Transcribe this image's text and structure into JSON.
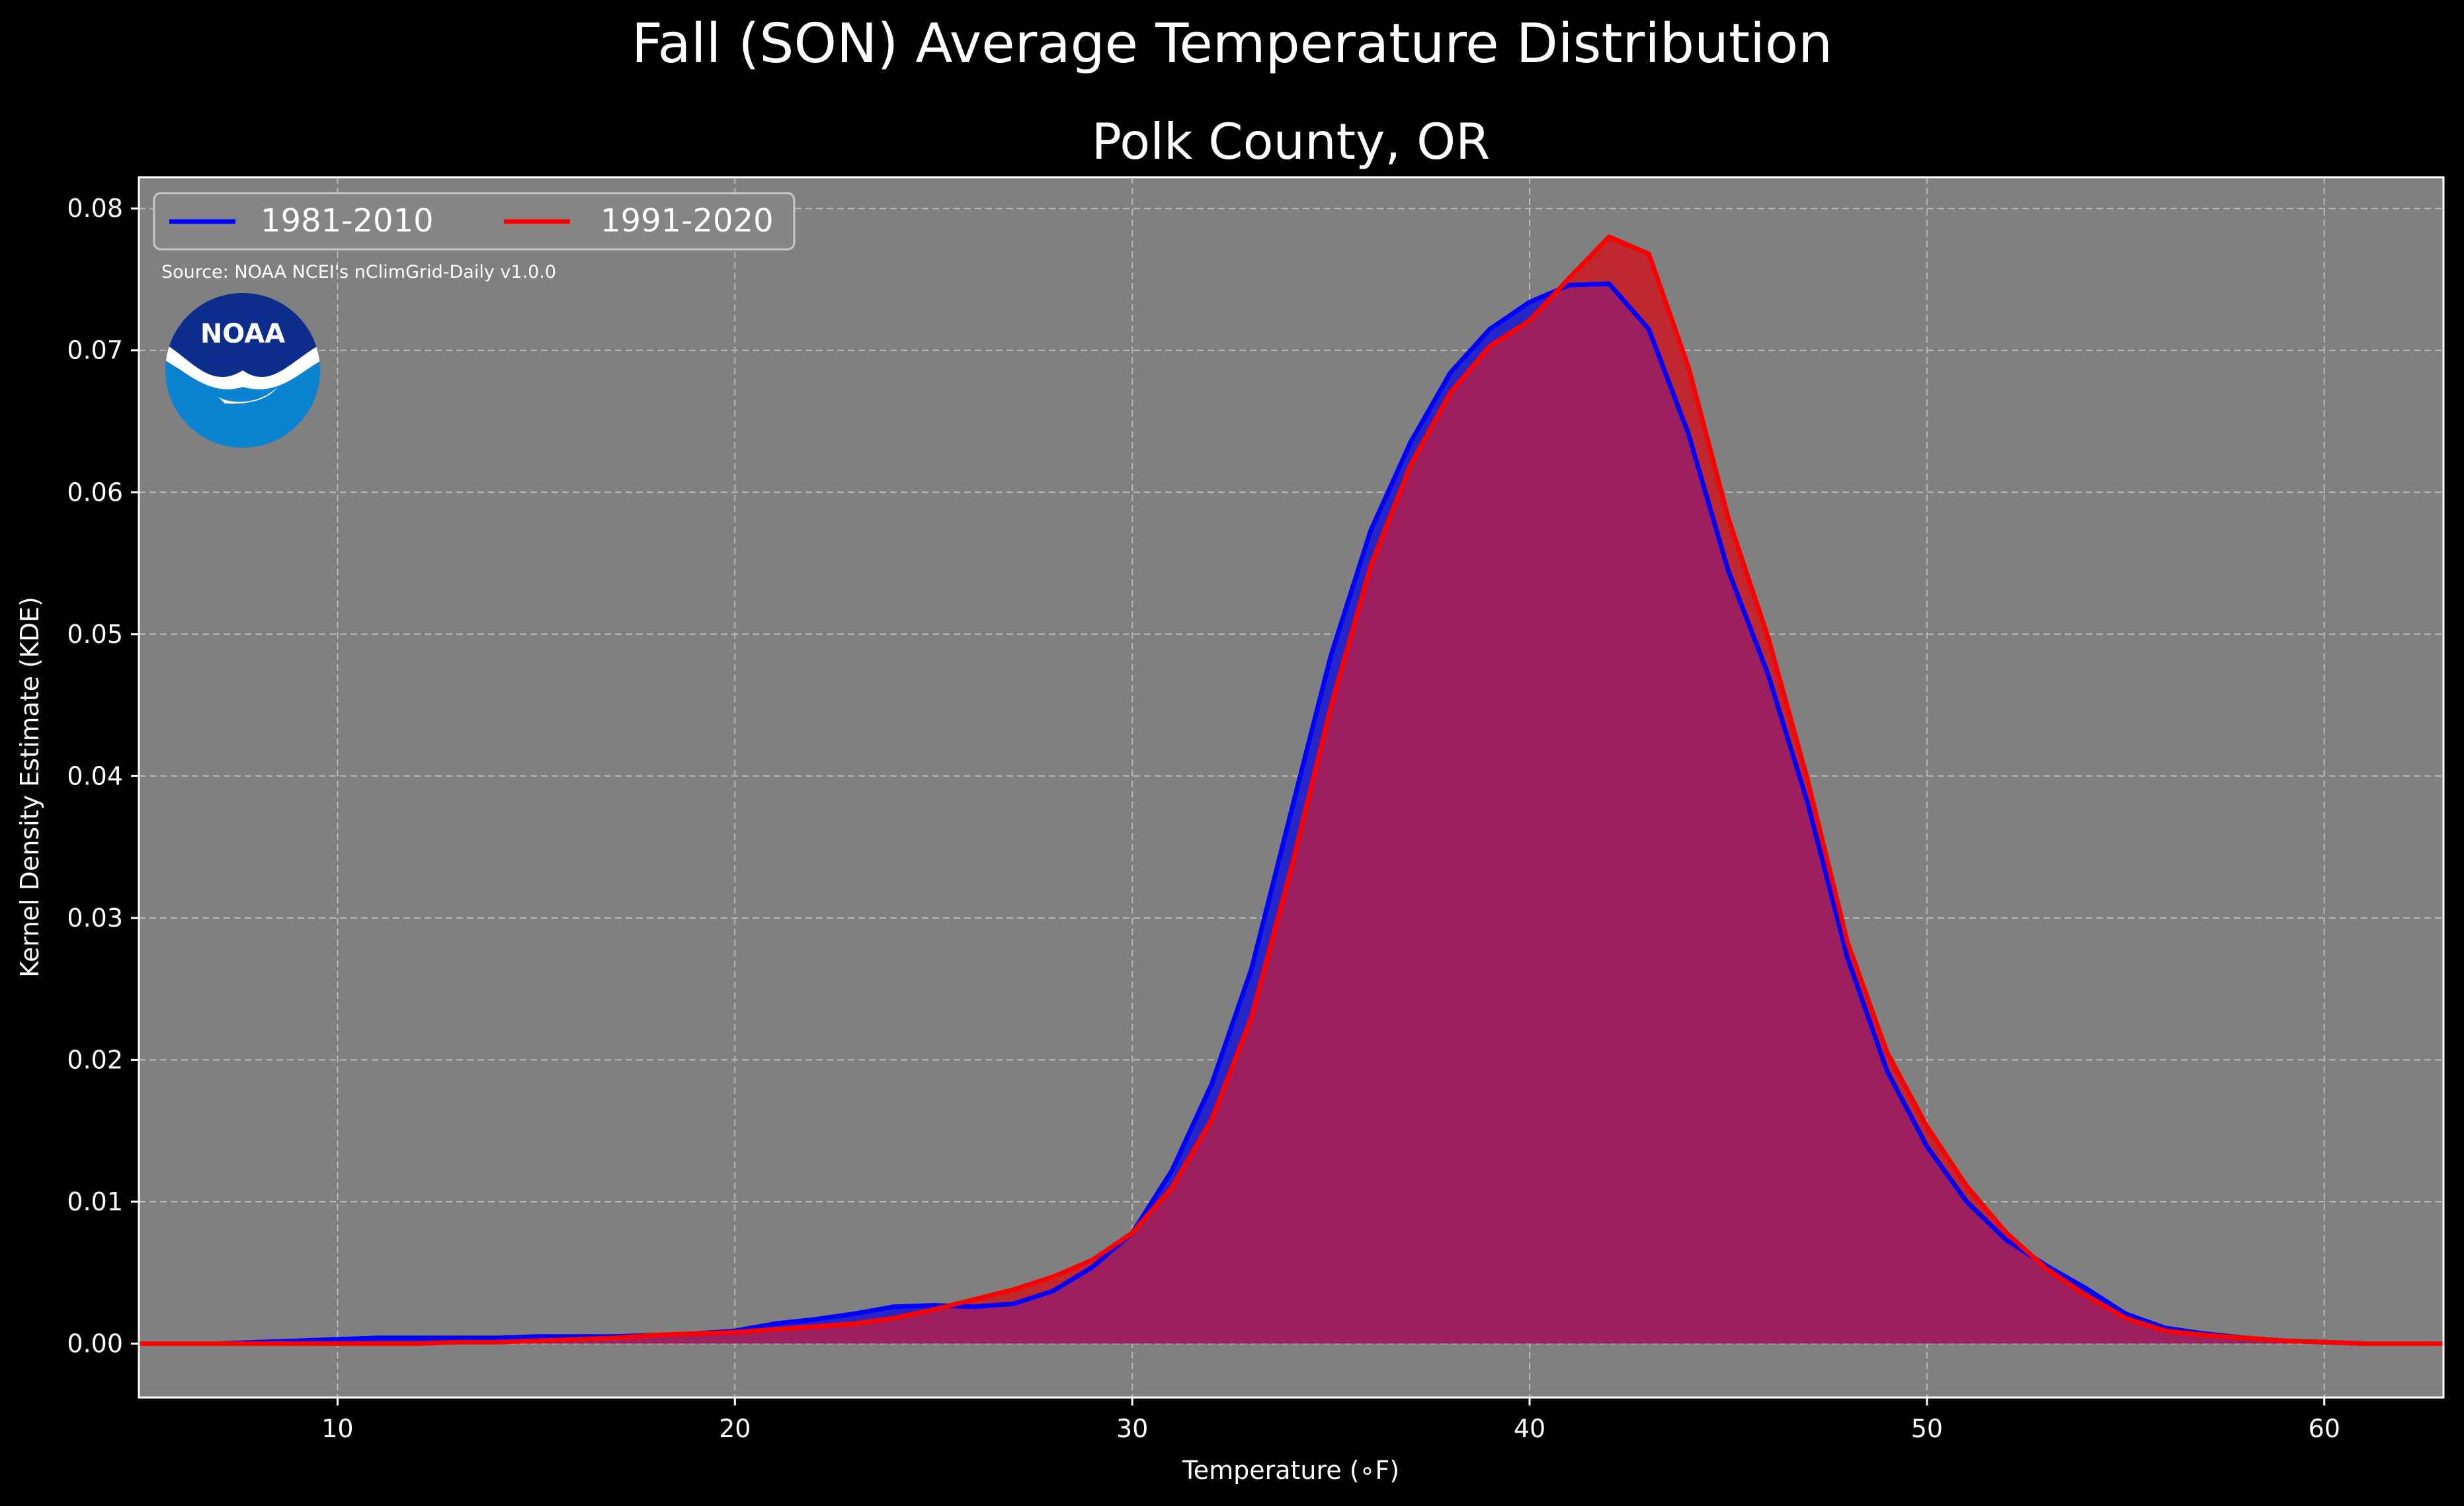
{
  "figure": {
    "title": "Fall (SON) Average Temperature Distribution"
  },
  "chart_data": {
    "type": "area",
    "title": "Polk County, OR",
    "xlabel": "Temperature (∘F)",
    "ylabel": "Kernel Density Estimate (KDE)",
    "xlim": [
      5,
      63
    ],
    "ylim": [
      -0.0038,
      0.0822
    ],
    "xticks": [
      10,
      20,
      30,
      40,
      50,
      60
    ],
    "yticks": [
      0.0,
      0.01,
      0.02,
      0.03,
      0.04,
      0.05,
      0.06,
      0.07,
      0.08
    ],
    "ytick_labels": [
      "0.00",
      "0.01",
      "0.02",
      "0.03",
      "0.04",
      "0.05",
      "0.06",
      "0.07",
      "0.08"
    ],
    "grid": true,
    "legend_position": "top-left",
    "source_note": "Source: NOAA NCEI's nClimGrid-Daily v1.0.0",
    "logo_text": "NOAA",
    "colors": {
      "figure_background": "#000000",
      "axes_background": "#808080",
      "blue_line": "#0000ff",
      "red_line": "#ff0000",
      "blue_fill": "#2626c8",
      "red_fill": "#c02830",
      "overlap_fill": "#9e1f5e",
      "noaa_dark": "#0d2d8c",
      "noaa_light": "#0a84d0"
    },
    "series": [
      {
        "name": "1981-2010",
        "color": "#0000ff",
        "x": [
          5,
          6,
          7,
          8,
          9,
          10,
          11,
          12,
          13,
          14,
          15,
          16,
          17,
          18,
          19,
          20,
          21,
          22,
          23,
          24,
          25,
          26,
          27,
          28,
          29,
          30,
          31,
          32,
          33,
          34,
          35,
          36,
          37,
          38,
          39,
          40,
          41,
          42,
          43,
          44,
          45,
          46,
          47,
          48,
          49,
          50,
          51,
          52,
          53,
          54,
          55,
          56,
          57,
          58,
          59,
          60,
          61,
          62,
          63
        ],
        "values": [
          0.0,
          0.0,
          0.0,
          0.0001,
          0.0002,
          0.0003,
          0.0004,
          0.0004,
          0.0004,
          0.0004,
          0.0005,
          0.0005,
          0.0005,
          0.0006,
          0.0007,
          0.0009,
          0.0014,
          0.0017,
          0.0021,
          0.0026,
          0.0027,
          0.0026,
          0.0028,
          0.0037,
          0.0054,
          0.0078,
          0.0122,
          0.0183,
          0.0264,
          0.0375,
          0.0485,
          0.0573,
          0.0635,
          0.0684,
          0.0715,
          0.0734,
          0.0746,
          0.0747,
          0.0715,
          0.0641,
          0.0545,
          0.0472,
          0.0381,
          0.0272,
          0.0192,
          0.0139,
          0.01,
          0.0073,
          0.0055,
          0.0039,
          0.0021,
          0.0011,
          0.0007,
          0.0004,
          0.0002,
          0.0001,
          0.0,
          0.0,
          0.0
        ]
      },
      {
        "name": "1991-2020",
        "color": "#ff0000",
        "x": [
          5,
          6,
          7,
          8,
          9,
          10,
          11,
          12,
          13,
          14,
          15,
          16,
          17,
          18,
          19,
          20,
          21,
          22,
          23,
          24,
          25,
          26,
          27,
          28,
          29,
          30,
          31,
          32,
          33,
          34,
          35,
          36,
          37,
          38,
          39,
          40,
          41,
          42,
          43,
          44,
          45,
          46,
          47,
          48,
          49,
          50,
          51,
          52,
          53,
          54,
          55,
          56,
          57,
          58,
          59,
          60,
          61,
          62,
          63
        ],
        "values": [
          0.0,
          0.0,
          0.0,
          0.0,
          0.0,
          0.0,
          0.0,
          0.0,
          0.0001,
          0.0001,
          0.0002,
          0.0003,
          0.0004,
          0.0006,
          0.0007,
          0.0008,
          0.001,
          0.0012,
          0.0014,
          0.0018,
          0.0024,
          0.0031,
          0.0038,
          0.0047,
          0.0059,
          0.0078,
          0.011,
          0.0158,
          0.023,
          0.0335,
          0.0449,
          0.0548,
          0.0619,
          0.067,
          0.0703,
          0.0721,
          0.0751,
          0.078,
          0.0768,
          0.0688,
          0.0582,
          0.0498,
          0.0397,
          0.0283,
          0.0205,
          0.0153,
          0.0111,
          0.0078,
          0.0053,
          0.0034,
          0.0018,
          0.0009,
          0.0006,
          0.0004,
          0.0002,
          0.0001,
          0.0,
          0.0,
          0.0
        ]
      }
    ]
  }
}
